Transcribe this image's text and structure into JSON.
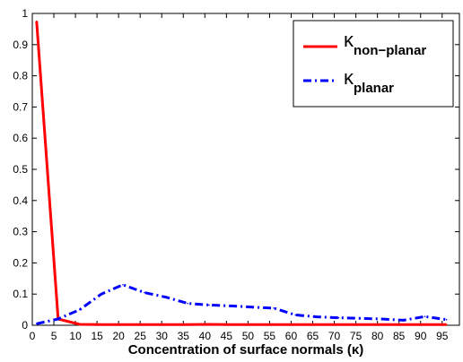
{
  "chart_data": {
    "type": "line",
    "title": "",
    "xlabel": "Concentration of surface normals (κ)",
    "ylabel": "",
    "xlim": [
      0,
      99
    ],
    "ylim": [
      0,
      1
    ],
    "grid": false,
    "legend_position": "top-right",
    "x": [
      1,
      6,
      11,
      16,
      21,
      26,
      31,
      36,
      41,
      46,
      51,
      56,
      61,
      66,
      71,
      76,
      81,
      86,
      91,
      96
    ],
    "x_ticks": [
      0,
      5,
      10,
      15,
      20,
      25,
      30,
      35,
      40,
      45,
      50,
      55,
      60,
      65,
      70,
      75,
      80,
      85,
      90,
      95
    ],
    "y_ticks": [
      "0",
      "0.1",
      "0.2",
      "0.3",
      "0.4",
      "0.5",
      "0.6",
      "0.7",
      "0.8",
      "0.9",
      "1"
    ],
    "series": [
      {
        "name": "κ",
        "subscript": "non−planar",
        "color": "#ff0000",
        "style": "solid",
        "values": [
          0.975,
          0.02,
          0.003,
          0.002,
          0.002,
          0.002,
          0.002,
          0.002,
          0.003,
          0.002,
          0.002,
          0.002,
          0.002,
          0.002,
          0.002,
          0.002,
          0.002,
          0.002,
          0.002,
          0.002
        ]
      },
      {
        "name": "κ",
        "subscript": "planar",
        "color": "#0000ff",
        "style": "dashdot",
        "values": [
          0.005,
          0.02,
          0.05,
          0.1,
          0.13,
          0.105,
          0.09,
          0.07,
          0.065,
          0.062,
          0.058,
          0.055,
          0.033,
          0.027,
          0.024,
          0.022,
          0.02,
          0.016,
          0.028,
          0.018
        ]
      }
    ]
  }
}
